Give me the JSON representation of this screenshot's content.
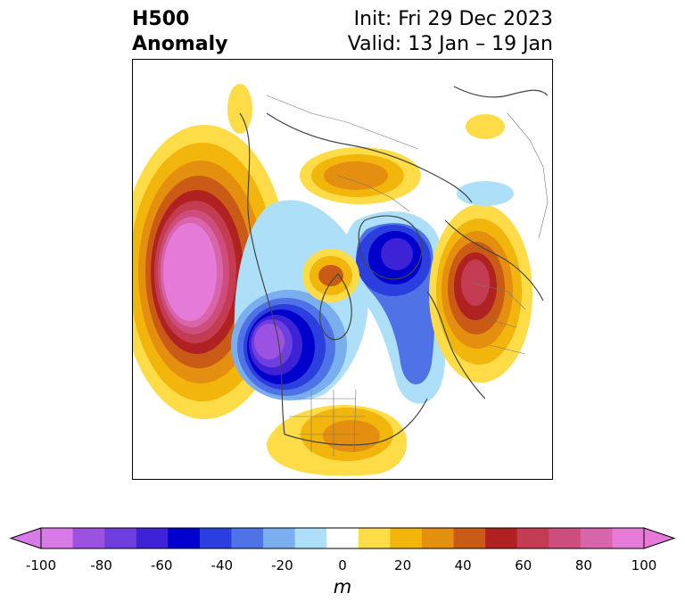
{
  "title": {
    "line1": "H500",
    "line2": "Anomaly",
    "init": "Init: Fri 29 Dec 2023",
    "valid": "Valid: 13 Jan – 19 Jan"
  },
  "colorbar": {
    "unit": "m",
    "ticks": [
      "-100",
      "-80",
      "-60",
      "-40",
      "-20",
      "0",
      "20",
      "40",
      "60",
      "80",
      "100"
    ],
    "levels": [
      -100,
      -90,
      -80,
      -70,
      -60,
      -50,
      -40,
      -30,
      -20,
      -10,
      10,
      20,
      30,
      40,
      50,
      60,
      70,
      80,
      90,
      100
    ],
    "colors": [
      "#d87ae8",
      "#9c52e0",
      "#6e3fdc",
      "#3e22d6",
      "#0000cd",
      "#2a3fdd",
      "#4f73e6",
      "#7aaeef",
      "#ade0f8",
      "#ffffff",
      "#fddc48",
      "#f2b50c",
      "#e48f0f",
      "#c95b16",
      "#b02222",
      "#c43c52",
      "#cd4d7c",
      "#d864aa",
      "#e67ad8"
    ],
    "extend": "both"
  },
  "map": {
    "projection": "north-polar-stereographic",
    "field": "500 hPa geopotential height anomaly",
    "centers": [
      {
        "sign": "positive",
        "peak_m": 100,
        "region": "North Pacific / Aleutians"
      },
      {
        "sign": "negative",
        "peak_m": -90,
        "region": "Gulf of Alaska / Pacific Northwest"
      },
      {
        "sign": "positive",
        "peak_m": 40,
        "region": "Central Canada"
      },
      {
        "sign": "positive",
        "peak_m": 40,
        "region": "Southern United States"
      },
      {
        "sign": "negative",
        "peak_m": -70,
        "region": "Greenland / Baffin"
      },
      {
        "sign": "positive",
        "peak_m": 60,
        "region": "Western Europe / North Atlantic"
      },
      {
        "sign": "positive",
        "peak_m": 40,
        "region": "Northern Siberia"
      },
      {
        "sign": "negative",
        "peak_m": -20,
        "region": "Scandinavia / Barents"
      },
      {
        "sign": "negative",
        "peak_m": -20,
        "region": "Western Canada"
      },
      {
        "sign": "positive",
        "peak_m": 20,
        "region": "Central Asia"
      }
    ]
  }
}
